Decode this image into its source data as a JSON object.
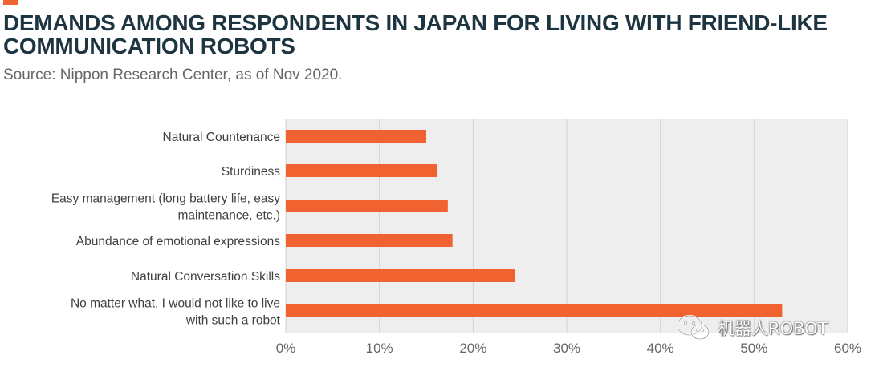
{
  "header": {
    "title": "DEMANDS AMONG RESPONDENTS IN JAPAN FOR LIVING WITH FRIEND-LIKE COMMUNICATION ROBOTS",
    "subtitle": "Source: Nippon Research Center, as of Nov 2020."
  },
  "watermark": {
    "text": "机器人ROBOT",
    "icon": "wechat-icon"
  },
  "colors": {
    "bar": "#f0622f",
    "accent": "#f0622f",
    "plot_background": "#eeeeee",
    "gridline": "#d2d2d2",
    "title": "#1d3540"
  },
  "chart_data": {
    "type": "bar",
    "orientation": "horizontal",
    "title": "DEMANDS AMONG RESPONDENTS IN JAPAN FOR LIVING WITH FRIEND-LIKE COMMUNICATION ROBOTS",
    "subtitle": "Source: Nippon Research Center, as of Nov 2020.",
    "categories": [
      [
        "Natural Countenance"
      ],
      [
        "Sturdiness"
      ],
      [
        "Easy management (long battery life, easy",
        "maintenance, etc.)"
      ],
      [
        "Abundance of emotional expressions"
      ],
      [
        "Natural Conversation Skills"
      ],
      [
        "No matter what, I would not like to live",
        "with such a robot"
      ]
    ],
    "values": [
      15,
      16.2,
      17.3,
      17.8,
      24.5,
      53
    ],
    "xlim": [
      0,
      60
    ],
    "xticks": [
      0,
      10,
      20,
      30,
      40,
      50,
      60
    ],
    "tick_labels": [
      "0%",
      "10%",
      "20%",
      "30%",
      "40%",
      "50%",
      "60%"
    ],
    "grid": true,
    "legend": "none"
  }
}
